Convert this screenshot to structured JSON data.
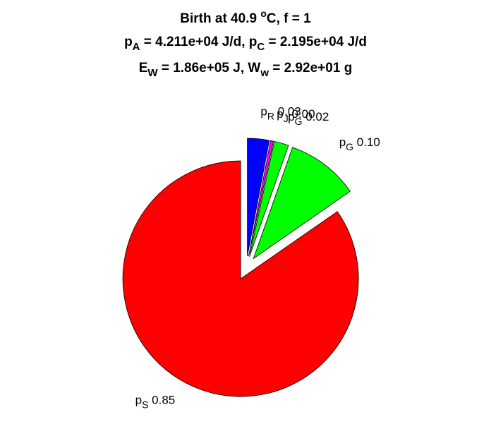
{
  "chart_data": {
    "type": "pie",
    "title": [
      [
        "Birth at 40.9 ",
        {
          "sup": "o"
        },
        "C, f = 1"
      ],
      [
        "p",
        {
          "sub": "A"
        },
        " = 4.211e+04 J/d, p",
        {
          "sub": "C"
        },
        " = 2.195e+04 J/d"
      ],
      [
        "E",
        {
          "sub": "W"
        },
        " = 1.86e+05 J, W",
        {
          "sub": "w"
        },
        " = 2.92e+01 g"
      ]
    ],
    "labels": [
      {
        "text": "p",
        "sub": "R"
      },
      {
        "text": "p",
        "sub": "J"
      },
      {
        "text": "p",
        "sub": "G"
      },
      {
        "text": "p",
        "sub": "G"
      },
      {
        "text": "p",
        "sub": "S"
      }
    ],
    "values": [
      0.03,
      0.004,
      0.02,
      0.1,
      0.85
    ],
    "value_labels": [
      "0.03",
      "0.00",
      "0.02",
      "0.10",
      "0.85"
    ],
    "colors": [
      "#0000ff",
      "#ff00ff",
      "#00ff00",
      "#00ff00",
      "#ff0000"
    ],
    "explode": true
  }
}
